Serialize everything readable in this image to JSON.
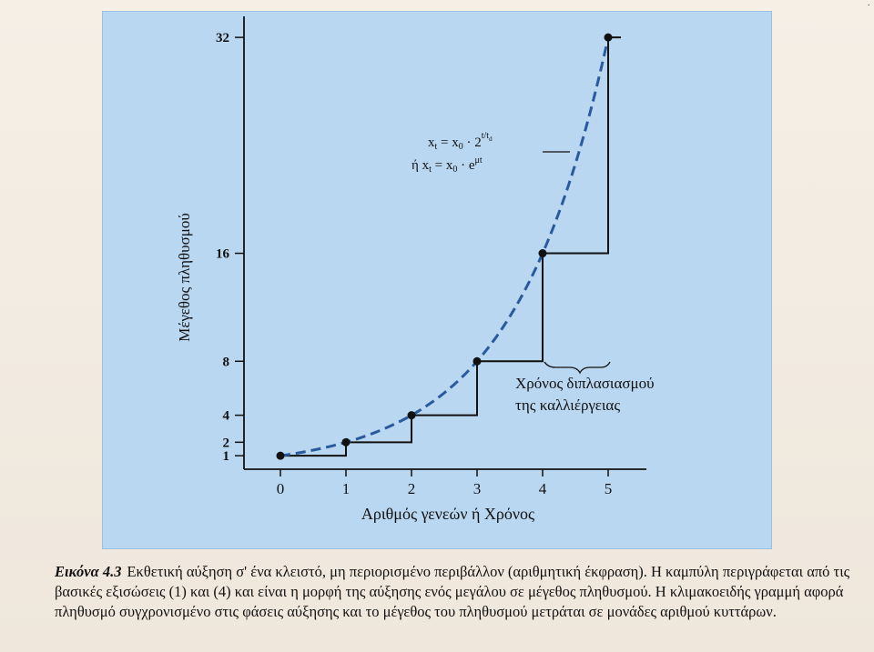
{
  "chart_data": {
    "type": "line",
    "xlabel": "Αριθμός γενεών ή Χρόνος",
    "ylabel": "Μέγεθος πληθυσμού",
    "x_ticks": [
      "0",
      "1",
      "2",
      "3",
      "4",
      "5"
    ],
    "y_ticks": [
      "1",
      "2",
      "4",
      "8",
      "16",
      "32"
    ],
    "x": [
      0,
      1,
      2,
      3,
      4,
      5
    ],
    "series": [
      {
        "style": "dashed-curve",
        "values": [
          1,
          2,
          4,
          8,
          16,
          32
        ]
      },
      {
        "style": "staircase",
        "values": [
          1,
          2,
          4,
          8,
          16,
          32
        ]
      }
    ],
    "xlim": [
      0,
      5
    ],
    "ylim": [
      0,
      32
    ],
    "grid": false,
    "annotations": {
      "formula_line1_lhs": "x",
      "formula_line1_lhs_sub": "t",
      "formula_line1_eq": " = x",
      "formula_line1_eq_sub": "0",
      "formula_line1_rhs": " · 2",
      "formula_line1_exp": "t/t",
      "formula_line1_exp_sub": "d",
      "formula_line2_prefix": "ή x",
      "formula_line2_sub": "t",
      "formula_line2_eq": " = x",
      "formula_line2_eq_sub": "0",
      "formula_line2_rhs": " · e",
      "formula_line2_exp": "μt",
      "doubling_label_line1": "Χρόνος διπλασιασμού",
      "doubling_label_line2": "της καλλιέργειας"
    }
  },
  "caption": {
    "label": "Εικόνα 4.3",
    "text": "Εκθετική αύξηση σ' ένα κλειστό, μη περιορισμένο περιβάλλον (αριθμητική έκφραση). Η καμπύλη περιγράφεται από τις βασικές εξισώσεις (1) και (4) και είναι η μορφή της αύξησης ενός μεγάλου σε μέγεθος πληθυσμού. Η κλιμακοειδής γραμμή αφορά πληθυσμό συγχρονισμένο στις φάσεις αύξησης και το μέγεθος του πληθυσμού μετράται σε μονάδες αριθμού κυττάρων."
  },
  "colors": {
    "panel": "#b9d7f1",
    "curve": "#2a5a9e",
    "ink": "#111111"
  }
}
